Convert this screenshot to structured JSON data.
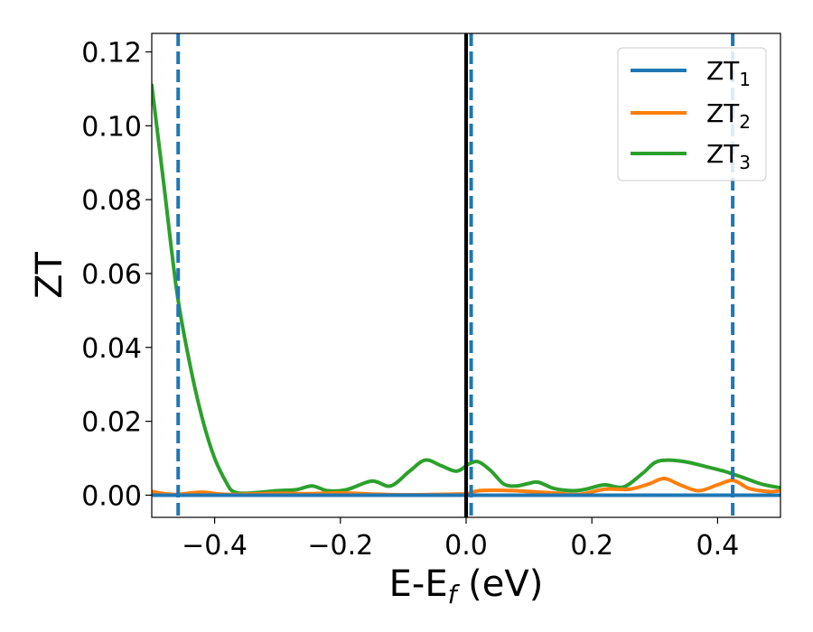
{
  "chart_data": {
    "type": "line",
    "title": "",
    "xlabel": "E-E",
    "xlabel_sub": "f",
    "xlabel_unit": " (eV)",
    "ylabel": "ZT",
    "xlim": [
      -0.5,
      0.5
    ],
    "ylim": [
      -0.006,
      0.125
    ],
    "xticks": [
      -0.4,
      -0.2,
      0.0,
      0.2,
      0.4
    ],
    "xtick_labels": [
      "−0.4",
      "−0.2",
      "0.0",
      "0.2",
      "0.4"
    ],
    "yticks": [
      0.0,
      0.02,
      0.04,
      0.06,
      0.08,
      0.1,
      0.12
    ],
    "ytick_labels": [
      "0.00",
      "0.02",
      "0.04",
      "0.06",
      "0.08",
      "0.10",
      "0.12"
    ],
    "grid": false,
    "legend_position": "top-right",
    "vertical_lines": [
      {
        "x": -0.458,
        "style": "dashed",
        "color": "#1f77b4"
      },
      {
        "x": 0.0,
        "style": "solid",
        "color": "#000000"
      },
      {
        "x": 0.008,
        "style": "dashed",
        "color": "#1f77b4"
      },
      {
        "x": 0.424,
        "style": "dashed",
        "color": "#1f77b4"
      }
    ],
    "series": [
      {
        "name": "ZT",
        "name_sub": "1",
        "color": "#1f77b4",
        "x": [
          -0.5,
          -0.4,
          -0.3,
          -0.2,
          -0.1,
          0.0,
          0.1,
          0.2,
          0.3,
          0.4,
          0.5
        ],
        "y": [
          0.0,
          0.0,
          0.0,
          0.0,
          0.0,
          0.0,
          0.0,
          0.0,
          0.0,
          0.0,
          0.0
        ]
      },
      {
        "name": "ZT",
        "name_sub": "2",
        "color": "#ff7f0e",
        "x": [
          -0.5,
          -0.48,
          -0.46,
          -0.42,
          -0.38,
          -0.3,
          -0.25,
          -0.2,
          -0.15,
          -0.1,
          -0.05,
          0.0,
          0.02,
          0.06,
          0.1,
          0.14,
          0.18,
          0.22,
          0.26,
          0.29,
          0.315,
          0.34,
          0.37,
          0.4,
          0.425,
          0.45,
          0.48,
          0.5
        ],
        "y": [
          0.001,
          0.0004,
          0.0002,
          0.0008,
          0.0002,
          0.0005,
          0.0004,
          0.0006,
          0.0003,
          0.0001,
          0.0002,
          0.0004,
          0.0012,
          0.0013,
          0.001,
          0.0006,
          0.0002,
          0.0016,
          0.0016,
          0.003,
          0.0045,
          0.0028,
          0.0012,
          0.0028,
          0.004,
          0.0018,
          0.001,
          0.0012
        ]
      },
      {
        "name": "ZT",
        "name_sub": "3",
        "color": "#2ca02c",
        "x": [
          -0.5,
          -0.48,
          -0.46,
          -0.44,
          -0.42,
          -0.4,
          -0.38,
          -0.37,
          -0.35,
          -0.3,
          -0.27,
          -0.245,
          -0.22,
          -0.19,
          -0.15,
          -0.12,
          -0.09,
          -0.065,
          -0.04,
          -0.015,
          0.005,
          0.02,
          0.04,
          0.06,
          0.08,
          0.1,
          0.115,
          0.14,
          0.17,
          0.19,
          0.22,
          0.25,
          0.28,
          0.3,
          0.32,
          0.35,
          0.38,
          0.41,
          0.44,
          0.47,
          0.5
        ],
        "y": [
          0.111,
          0.083,
          0.055,
          0.036,
          0.021,
          0.01,
          0.003,
          0.001,
          0.0005,
          0.0012,
          0.0015,
          0.0025,
          0.0012,
          0.0015,
          0.0038,
          0.0025,
          0.0065,
          0.0095,
          0.008,
          0.0065,
          0.0085,
          0.009,
          0.0065,
          0.003,
          0.0025,
          0.0032,
          0.0035,
          0.0018,
          0.0012,
          0.0016,
          0.0028,
          0.0022,
          0.0058,
          0.0088,
          0.0095,
          0.009,
          0.0078,
          0.0065,
          0.0048,
          0.003,
          0.002
        ]
      }
    ]
  }
}
